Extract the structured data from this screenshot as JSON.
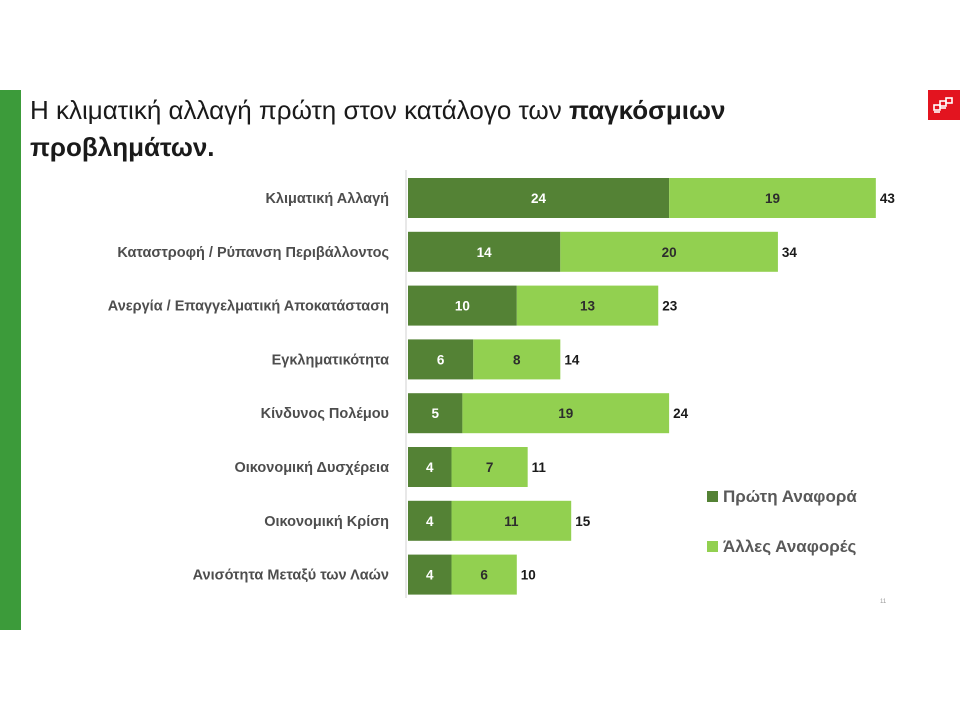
{
  "title": {
    "part1": "Η κλιματική αλλαγή πρώτη στον κατάλογο των ",
    "part2_bold": "παγκόσμιων προβλημάτων."
  },
  "page_number": "11",
  "colors": {
    "left_bar": "#3c9b3a",
    "logo": "#e3141f",
    "series_first": "#548235",
    "series_other": "#92d050"
  },
  "chart_data": {
    "type": "bar",
    "orientation": "horizontal",
    "stacked": true,
    "categories": [
      "Κλιματική Αλλαγή",
      "Καταστροφή / Ρύπανση Περιβάλλοντος",
      "Ανεργία / Επαγγελματική Αποκατάσταση",
      "Εγκληματικότητα",
      "Κίνδυνος Πολέμου",
      "Οικονομική Δυσχέρεια",
      "Οικονομική Κρίση",
      "Ανισότητα Μεταξύ των Λαών"
    ],
    "series": [
      {
        "name": "Πρώτη Αναφορά",
        "values": [
          24,
          14,
          10,
          6,
          5,
          4,
          4,
          4
        ],
        "color": "#548235"
      },
      {
        "name": "Άλλες Αναφορές",
        "values": [
          19,
          20,
          13,
          8,
          19,
          7,
          11,
          6
        ],
        "color": "#92d050"
      }
    ],
    "totals": [
      43,
      34,
      23,
      14,
      24,
      11,
      15,
      10
    ],
    "xlim": [
      0,
      43
    ],
    "grid": false,
    "legend_position": "right"
  }
}
